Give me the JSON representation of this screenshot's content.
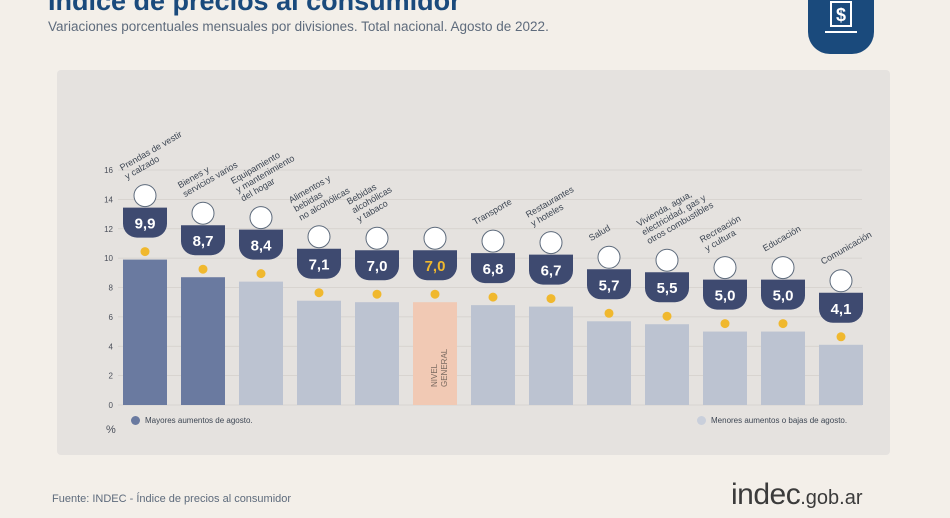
{
  "header": {
    "title": "Índice de precios al consumidor",
    "subtitle": "Variaciones porcentuales mensuales por divisiones. Total nacional. Agosto de 2022."
  },
  "footer": {
    "source": "Fuente: INDEC - Índice de precios al consumidor",
    "brand_main": "indec",
    "brand_domain": ".gob.ar"
  },
  "legend": {
    "higher": "Mayores aumentos de agosto.",
    "lower": "Menores aumentos o bajas de agosto."
  },
  "colors": {
    "higher": "#6a7aa0",
    "lower": "#bcc3d1",
    "general": "#f1c9b4",
    "badge": "#3e4a70",
    "dot": "#f0b82e",
    "title": "#1a4a7c"
  },
  "chart_data": {
    "type": "bar",
    "ylabel": "%",
    "ylim": [
      0,
      16
    ],
    "yticks": [
      0,
      2,
      4,
      6,
      8,
      10,
      12,
      14,
      16
    ],
    "grid": true,
    "categories": [
      [
        "Prendas de vestir",
        "y calzado"
      ],
      [
        "Bienes y",
        "servicios varios"
      ],
      [
        "Equipamiento",
        "y mantenimiento",
        "del hogar"
      ],
      [
        "Alimentos y",
        "bebidas",
        "no alcohólicas"
      ],
      [
        "Bebidas",
        "alcohólicas",
        "y tabaco"
      ],
      [
        "NIVEL",
        "GENERAL"
      ],
      [
        "Transporte"
      ],
      [
        "Restaurantes",
        "y hoteles"
      ],
      [
        "Salud"
      ],
      [
        "Vivienda, agua,",
        "electricidad, gas y",
        "otros combustibles"
      ],
      [
        "Recreación",
        "y cultura"
      ],
      [
        "Educación"
      ],
      [
        "Comunicación"
      ]
    ],
    "values": [
      9.9,
      8.7,
      8.4,
      7.1,
      7.0,
      7.0,
      6.8,
      6.7,
      5.7,
      5.5,
      5.0,
      5.0,
      4.1
    ],
    "labels": [
      "9,9",
      "8,7",
      "8,4",
      "7,1",
      "7,0",
      "7,0",
      "6,8",
      "6,7",
      "5,7",
      "5,5",
      "5,0",
      "5,0",
      "4,1"
    ],
    "groups": [
      "higher",
      "higher",
      "lower",
      "lower",
      "lower",
      "general",
      "lower",
      "lower",
      "lower",
      "lower",
      "lower",
      "lower",
      "lower"
    ]
  }
}
